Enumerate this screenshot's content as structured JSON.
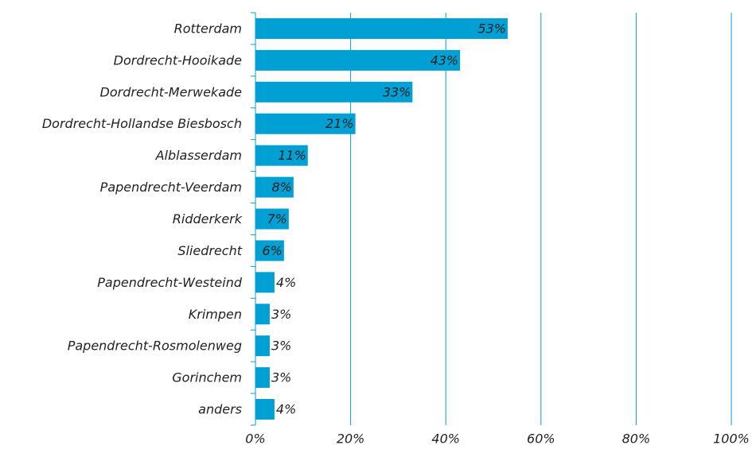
{
  "chart_data": {
    "type": "bar",
    "orientation": "horizontal",
    "categories": [
      "Rotterdam",
      "Dordrecht-Hooikade",
      "Dordrecht-Merwekade",
      "Dordrecht-Hollandse Biesbosch",
      "Alblasserdam",
      "Papendrecht-Veerdam",
      "Ridderkerk",
      "Sliedrecht",
      "Papendrecht-Westeind",
      "Krimpen",
      "Papendrecht-Rosmolenweg",
      "Gorinchem",
      "anders"
    ],
    "values": [
      53,
      43,
      33,
      21,
      11,
      8,
      7,
      6,
      4,
      3,
      3,
      3,
      4
    ],
    "value_labels": [
      "53%",
      "43%",
      "33%",
      "21%",
      "11%",
      "8%",
      "7%",
      "6%",
      "4%",
      "3%",
      "3%",
      "3%",
      "4%"
    ],
    "color": "#009fd4",
    "xlim": [
      0,
      100
    ],
    "xticks": [
      {
        "value": 0,
        "label": "0%"
      },
      {
        "value": 20,
        "label": "20%"
      },
      {
        "value": 40,
        "label": "40%"
      },
      {
        "value": 60,
        "label": "60%"
      },
      {
        "value": 80,
        "label": "80%"
      },
      {
        "value": 100,
        "label": "100%"
      }
    ],
    "grid": true
  }
}
